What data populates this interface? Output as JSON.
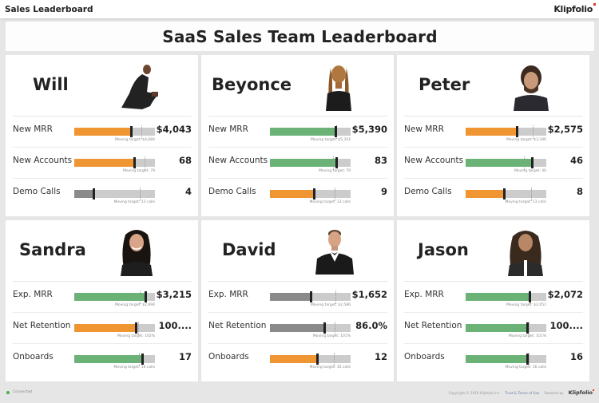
{
  "topbar": {
    "title": "Sales Leaderboard",
    "brand": "Klipfolio"
  },
  "dashboard": {
    "title": "SaaS Sales Team Leaderboard"
  },
  "colors": {
    "above_target": "#6bb276",
    "below_target": "#ef9531",
    "far_below": "#8a8a8a",
    "track": "#cccccc",
    "marker": "#222222"
  },
  "reps": [
    {
      "name": "Will",
      "photo": "person-photo-will",
      "metrics": [
        {
          "label": "New MRR",
          "value": "$4,043",
          "target_text": "Moving target: $4,684",
          "fill_pct": 71,
          "target_pct": 83,
          "status": "below_target"
        },
        {
          "label": "New Accounts",
          "value": "68",
          "target_text": "Moving target: 79",
          "fill_pct": 75,
          "target_pct": 87,
          "status": "below_target"
        },
        {
          "label": "Demo Calls",
          "value": "4",
          "target_text": "Moving target: 13 calls",
          "fill_pct": 25,
          "target_pct": 81,
          "status": "far_below"
        }
      ]
    },
    {
      "name": "Beyonce",
      "photo": "person-photo-beyonce",
      "metrics": [
        {
          "label": "New MRR",
          "value": "$5,390",
          "target_text": "Moving target: $5,354",
          "fill_pct": 82,
          "target_pct": 82,
          "status": "above_target"
        },
        {
          "label": "New Accounts",
          "value": "83",
          "target_text": "Moving target: 79",
          "fill_pct": 83,
          "target_pct": 78,
          "status": "above_target"
        },
        {
          "label": "Demo Calls",
          "value": "9",
          "target_text": "Moving target: 13 calls",
          "fill_pct": 55,
          "target_pct": 80,
          "status": "below_target"
        }
      ]
    },
    {
      "name": "Peter",
      "photo": "person-photo-peter",
      "metrics": [
        {
          "label": "New MRR",
          "value": "$2,575",
          "target_text": "Moving target: $3,346",
          "fill_pct": 64,
          "target_pct": 83,
          "status": "below_target"
        },
        {
          "label": "New Accounts",
          "value": "46",
          "target_text": "Moving target: 40",
          "fill_pct": 83,
          "target_pct": 72,
          "status": "above_target"
        },
        {
          "label": "Demo Calls",
          "value": "8",
          "target_text": "Moving target: 13 calls",
          "fill_pct": 49,
          "target_pct": 81,
          "status": "below_target"
        }
      ]
    },
    {
      "name": "Sandra",
      "photo": "person-photo-sandra",
      "metrics": [
        {
          "label": "Exp. MRR",
          "value": "$3,215",
          "target_text": "Moving target: $2,994",
          "fill_pct": 89,
          "target_pct": 81,
          "status": "above_target"
        },
        {
          "label": "Net Retention",
          "value": "100....",
          "target_text": "Moving target: 102%",
          "fill_pct": 77,
          "target_pct": 79,
          "status": "below_target"
        },
        {
          "label": "Onboards",
          "value": "17",
          "target_text": "Moving target: 16 calls",
          "fill_pct": 85,
          "target_pct": 80,
          "status": "above_target"
        }
      ]
    },
    {
      "name": "David",
      "photo": "person-photo-david",
      "metrics": [
        {
          "label": "Exp. MRR",
          "value": "$1,652",
          "target_text": "Moving target: $2,586",
          "fill_pct": 51,
          "target_pct": 81,
          "status": "far_below"
        },
        {
          "label": "Net Retention",
          "value": "86.0%",
          "target_text": "Moving target: 101%",
          "fill_pct": 68,
          "target_pct": 80,
          "status": "far_below"
        },
        {
          "label": "Onboards",
          "value": "12",
          "target_text": "Moving target: 16 calls",
          "fill_pct": 59,
          "target_pct": 79,
          "status": "below_target"
        }
      ]
    },
    {
      "name": "Jason",
      "photo": "person-photo-jason",
      "metrics": [
        {
          "label": "Exp. MRR",
          "value": "$2,072",
          "target_text": "Moving target: $2,051",
          "fill_pct": 80,
          "target_pct": 79,
          "status": "above_target"
        },
        {
          "label": "Net Retention",
          "value": "100....",
          "target_text": "Moving target: 101%",
          "fill_pct": 77,
          "target_pct": 78,
          "status": "above_target"
        },
        {
          "label": "Onboards",
          "value": "16",
          "target_text": "Moving target: 16 calls",
          "fill_pct": 77,
          "target_pct": 78,
          "status": "above_target"
        }
      ]
    }
  ],
  "footer": {
    "status": "Connected",
    "copyright": "Copyright © 2019 Klipfolio Inc.",
    "terms": "Trust & Terms of Use",
    "powered_by": "Powered by",
    "brand": "Klipfolio"
  }
}
